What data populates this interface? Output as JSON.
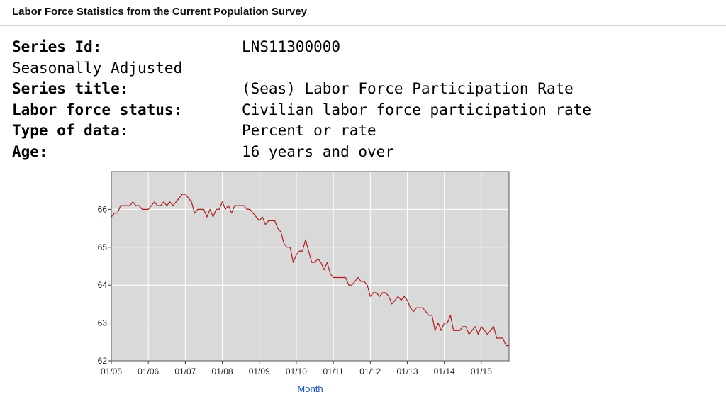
{
  "header": {
    "title": "Labor Force Statistics from the Current Population Survey"
  },
  "series_info": {
    "series_id_label": "Series Id:",
    "series_id_value": "LNS11300000",
    "adjustment": "Seasonally Adjusted",
    "series_title_label": "Series title:",
    "series_title_value": "(Seas) Labor Force Participation Rate",
    "status_label": "Labor force status:",
    "status_value": "Civilian labor force participation rate",
    "type_label": "Type of data:",
    "type_value": "Percent or rate",
    "age_label": "Age:",
    "age_value": "16 years and over"
  },
  "chart_data": {
    "type": "line",
    "title": "",
    "xlabel": "Month",
    "ylabel": "",
    "xlim": [
      "2005-01",
      "2015-10"
    ],
    "ylim": [
      62,
      67
    ],
    "grid": true,
    "line_color": "#b01c1c",
    "plot_background": "#d9d9d9",
    "x_ticks": [
      {
        "date": "2005-01",
        "label": "01/05"
      },
      {
        "date": "2006-01",
        "label": "01/06"
      },
      {
        "date": "2007-01",
        "label": "01/07"
      },
      {
        "date": "2008-01",
        "label": "01/08"
      },
      {
        "date": "2009-01",
        "label": "01/09"
      },
      {
        "date": "2010-01",
        "label": "01/10"
      },
      {
        "date": "2011-01",
        "label": "01/11"
      },
      {
        "date": "2012-01",
        "label": "01/12"
      },
      {
        "date": "2013-01",
        "label": "01/13"
      },
      {
        "date": "2014-01",
        "label": "01/14"
      },
      {
        "date": "2015-01",
        "label": "01/15"
      }
    ],
    "y_ticks": [
      62,
      63,
      64,
      65,
      66
    ],
    "series": [
      {
        "x": [
          "2005-01",
          "2005-02",
          "2005-03",
          "2005-04",
          "2005-05",
          "2005-06",
          "2005-07",
          "2005-08",
          "2005-09",
          "2005-10",
          "2005-11",
          "2005-12",
          "2006-01",
          "2006-02",
          "2006-03",
          "2006-04",
          "2006-05",
          "2006-06",
          "2006-07",
          "2006-08",
          "2006-09",
          "2006-10",
          "2006-11",
          "2006-12",
          "2007-01",
          "2007-02",
          "2007-03",
          "2007-04",
          "2007-05",
          "2007-06",
          "2007-07",
          "2007-08",
          "2007-09",
          "2007-10",
          "2007-11",
          "2007-12",
          "2008-01",
          "2008-02",
          "2008-03",
          "2008-04",
          "2008-05",
          "2008-06",
          "2008-07",
          "2008-08",
          "2008-09",
          "2008-10",
          "2008-11",
          "2008-12",
          "2009-01",
          "2009-02",
          "2009-03",
          "2009-04",
          "2009-05",
          "2009-06",
          "2009-07",
          "2009-08",
          "2009-09",
          "2009-10",
          "2009-11",
          "2009-12",
          "2010-01",
          "2010-02",
          "2010-03",
          "2010-04",
          "2010-05",
          "2010-06",
          "2010-07",
          "2010-08",
          "2010-09",
          "2010-10",
          "2010-11",
          "2010-12",
          "2011-01",
          "2011-02",
          "2011-03",
          "2011-04",
          "2011-05",
          "2011-06",
          "2011-07",
          "2011-08",
          "2011-09",
          "2011-10",
          "2011-11",
          "2011-12",
          "2012-01",
          "2012-02",
          "2012-03",
          "2012-04",
          "2012-05",
          "2012-06",
          "2012-07",
          "2012-08",
          "2012-09",
          "2012-10",
          "2012-11",
          "2012-12",
          "2013-01",
          "2013-02",
          "2013-03",
          "2013-04",
          "2013-05",
          "2013-06",
          "2013-07",
          "2013-08",
          "2013-09",
          "2013-10",
          "2013-11",
          "2013-12",
          "2014-01",
          "2014-02",
          "2014-03",
          "2014-04",
          "2014-05",
          "2014-06",
          "2014-07",
          "2014-08",
          "2014-09",
          "2014-10",
          "2014-11",
          "2014-12",
          "2015-01",
          "2015-02",
          "2015-03",
          "2015-04",
          "2015-05",
          "2015-06",
          "2015-07",
          "2015-08",
          "2015-09",
          "2015-10"
        ],
        "values": [
          65.8,
          65.9,
          65.9,
          66.1,
          66.1,
          66.1,
          66.1,
          66.2,
          66.1,
          66.1,
          66.0,
          66.0,
          66.0,
          66.1,
          66.2,
          66.1,
          66.1,
          66.2,
          66.1,
          66.2,
          66.1,
          66.2,
          66.3,
          66.4,
          66.4,
          66.3,
          66.2,
          65.9,
          66.0,
          66.0,
          66.0,
          65.8,
          66.0,
          65.8,
          66.0,
          66.0,
          66.2,
          66.0,
          66.1,
          65.9,
          66.1,
          66.1,
          66.1,
          66.1,
          66.0,
          66.0,
          65.9,
          65.8,
          65.7,
          65.8,
          65.6,
          65.7,
          65.7,
          65.7,
          65.5,
          65.4,
          65.1,
          65.0,
          65.0,
          64.6,
          64.8,
          64.9,
          64.9,
          65.2,
          64.9,
          64.6,
          64.6,
          64.7,
          64.6,
          64.4,
          64.6,
          64.3,
          64.2,
          64.2,
          64.2,
          64.2,
          64.2,
          64.0,
          64.0,
          64.1,
          64.2,
          64.1,
          64.1,
          64.0,
          63.7,
          63.8,
          63.8,
          63.7,
          63.8,
          63.8,
          63.7,
          63.5,
          63.6,
          63.7,
          63.6,
          63.7,
          63.6,
          63.4,
          63.3,
          63.4,
          63.4,
          63.4,
          63.3,
          63.2,
          63.2,
          62.8,
          63.0,
          62.8,
          63.0,
          63.0,
          63.2,
          62.8,
          62.8,
          62.8,
          62.9,
          62.9,
          62.7,
          62.8,
          62.9,
          62.7,
          62.9,
          62.8,
          62.7,
          62.8,
          62.9,
          62.6,
          62.6,
          62.6,
          62.4,
          62.4
        ]
      }
    ]
  }
}
